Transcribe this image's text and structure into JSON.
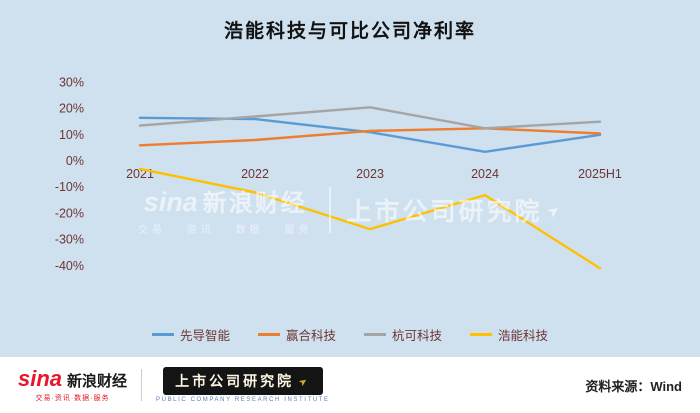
{
  "chart_data": {
    "type": "line",
    "title": "浩能科技与可比公司净利率",
    "categories": [
      "2021",
      "2022",
      "2023",
      "2024",
      "2025H1"
    ],
    "series": [
      {
        "name": "先导智能",
        "color": "#5B9BD5",
        "values": [
          16.5,
          16,
          11,
          3.5,
          10
        ]
      },
      {
        "name": "赢合科技",
        "color": "#ED7D31",
        "values": [
          6,
          8,
          11.5,
          12.5,
          10.5
        ]
      },
      {
        "name": "杭可科技",
        "color": "#A5A5A5",
        "values": [
          13.5,
          17,
          20.5,
          12.5,
          15
        ]
      },
      {
        "name": "浩能科技",
        "color": "#FFC000",
        "values": [
          -3,
          -12,
          -26,
          -13,
          -41
        ]
      }
    ],
    "y_ticks": [
      30,
      20,
      10,
      0,
      -10,
      -20,
      -30,
      -40
    ],
    "ylim": [
      -45,
      32
    ],
    "xlabel": "",
    "ylabel": "",
    "grid": false,
    "legend_position": "bottom"
  },
  "colors": {
    "background": "#cfe0ee",
    "axis_text": "#6e3535",
    "title_text": "#111111",
    "footer_background": "#ffffff",
    "sina_red": "#e6162d",
    "source_text": "#222222"
  },
  "watermark": {
    "sina": "sina",
    "brand": "新浪财经",
    "tagline": "交易 · 资讯 · 数据 · 服务",
    "institute": "上市公司研究院"
  },
  "footer": {
    "sina_logo": "sina",
    "sina_name": "新浪财经",
    "sina_tagline": "交易·资讯·数据·服务",
    "institute": "上市公司研究院",
    "institute_sub": "PUBLIC COMPANY RESEARCH INSTITUTE",
    "source": "资料来源：Wind"
  }
}
